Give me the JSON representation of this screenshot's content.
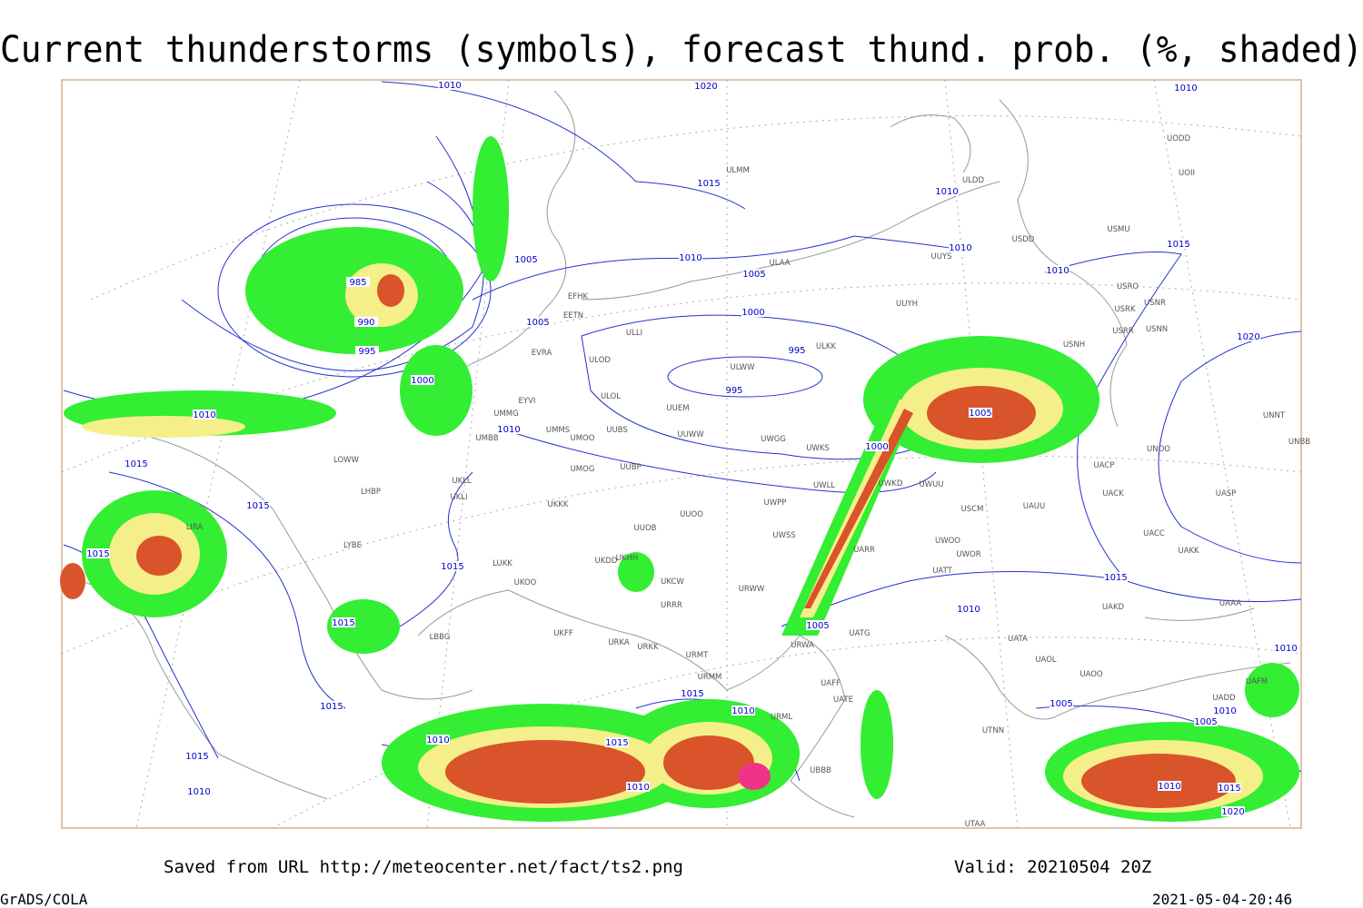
{
  "title": "Current thunderstorms (symbols), forecast thund. prob. (%, shaded)",
  "footer": {
    "saved": "Saved from URL http://meteocenter.net/fact/ts2.png",
    "valid": "Valid: 20210504 20Z",
    "software": "GrADS/COLA",
    "timestamp": "2021-05-04-20:46"
  },
  "isobar_labels": [
    "1010",
    "1020",
    "1010",
    "1015",
    "1010",
    "1010",
    "1015",
    "1005",
    "1010",
    "1005",
    "1010",
    "985",
    "990",
    "1005",
    "1000",
    "995",
    "995",
    "995",
    "1000",
    "1020",
    "1010",
    "1005",
    "1010",
    "1015",
    "1000",
    "1015",
    "1015",
    "1015",
    "1015",
    "1010",
    "1015",
    "1005",
    "1010",
    "1015",
    "1015",
    "1010",
    "1005",
    "1010",
    "1005",
    "1015",
    "1015",
    "1010",
    "1010",
    "1010",
    "1010",
    "1015",
    "1020"
  ],
  "stations": [
    "ULMM",
    "ULDD",
    "UODD",
    "UOII",
    "USMU",
    "USDD",
    "UUYS",
    "ULAA",
    "USRO",
    "USRK",
    "USNR",
    "USRR",
    "USNN",
    "UUYH",
    "USNH",
    "ULKK",
    "ULWW",
    "ULOD",
    "ULOL",
    "UUEM",
    "ULLI",
    "EFHK",
    "EETN",
    "EVRA",
    "EYVI",
    "UMMG",
    "UMMS",
    "UMOO",
    "UUBS",
    "UMBB",
    "UUWW",
    "UWGG",
    "UWKS",
    "UUBP",
    "UMOG",
    "UWLL",
    "UWKD",
    "UWUU",
    "USCM",
    "UAUU",
    "UACP",
    "UACK",
    "UASP",
    "UNOO",
    "UNNT",
    "UNBB",
    "UKLL",
    "UKLI",
    "LOWW",
    "LHBP",
    "LIRA",
    "UKKK",
    "UUOO",
    "UWPP",
    "UWSS",
    "UUOB",
    "UARR",
    "UWOO",
    "UWOR",
    "UACC",
    "UAKK",
    "LYBE",
    "LUKK",
    "UKHH",
    "UKOO",
    "UKDD",
    "UKCW",
    "URWW",
    "URRR",
    "UATT",
    "UAKD",
    "UATG",
    "UATA",
    "UAOL",
    "URWA",
    "URKK",
    "URKA",
    "UKFF",
    "LBBG",
    "URMT",
    "URMM",
    "UATE",
    "UAFF",
    "UAAA",
    "UAOO",
    "UAFM",
    "UADD",
    "UTNN",
    "URML",
    "UBBB",
    "UTAA"
  ]
}
